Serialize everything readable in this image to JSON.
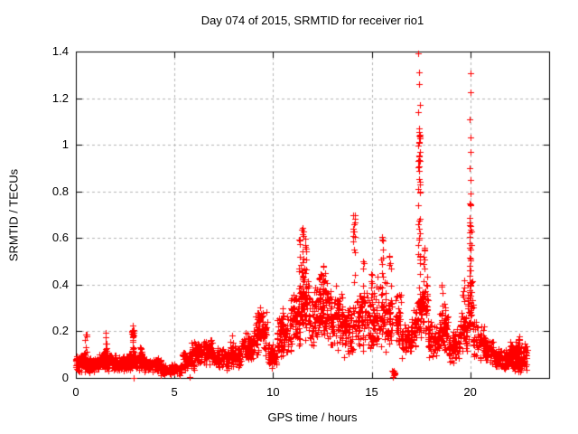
{
  "chart_data": {
    "type": "scatter",
    "title": "Day 074 of 2015, SRMTID for receiver rio1",
    "xlabel": "GPS time / hours",
    "ylabel": "SRMTID / TECUs",
    "xlim": [
      0,
      24
    ],
    "ylim": [
      0,
      1.4
    ],
    "xticks": [
      0,
      5,
      10,
      15,
      20
    ],
    "xtick_labels": [
      "0",
      "5",
      "10",
      "15",
      "20"
    ],
    "yticks": [
      0,
      0.2,
      0.4,
      0.6,
      0.8,
      1,
      1.2,
      1.4
    ],
    "ytick_labels": [
      "0",
      "0.2",
      "0.4",
      "0.6",
      "0.8",
      "1",
      "1.2",
      "1.4"
    ],
    "grid": true,
    "legend": "none",
    "marker": "plus",
    "marker_color": "#ff0000",
    "grid_color": "#b4b4b4",
    "frame_color": "#000000",
    "series_name": "SRMTID",
    "x_data_range": [
      0.05,
      22.9
    ],
    "band_segments": [
      [
        0.0,
        0.6,
        0.02,
        0.11,
        90
      ],
      [
        0.6,
        1.2,
        0.02,
        0.09,
        85
      ],
      [
        1.2,
        1.8,
        0.03,
        0.12,
        85
      ],
      [
        1.8,
        2.6,
        0.02,
        0.1,
        105
      ],
      [
        2.6,
        3.4,
        0.03,
        0.12,
        105
      ],
      [
        3.4,
        4.3,
        0.02,
        0.1,
        115
      ],
      [
        4.3,
        5.4,
        0.01,
        0.06,
        115
      ],
      [
        5.4,
        6.0,
        0.03,
        0.13,
        65
      ],
      [
        6.0,
        7.0,
        0.05,
        0.17,
        110
      ],
      [
        7.0,
        7.8,
        0.03,
        0.13,
        85
      ],
      [
        7.8,
        8.4,
        0.04,
        0.15,
        70
      ],
      [
        8.4,
        9.0,
        0.06,
        0.2,
        75
      ],
      [
        9.0,
        9.7,
        0.08,
        0.3,
        85
      ],
      [
        9.7,
        10.2,
        0.03,
        0.15,
        60
      ],
      [
        10.2,
        10.9,
        0.08,
        0.28,
        85
      ],
      [
        10.9,
        11.4,
        0.12,
        0.4,
        65
      ],
      [
        11.4,
        11.8,
        0.15,
        0.48,
        55
      ],
      [
        11.8,
        12.3,
        0.12,
        0.4,
        65
      ],
      [
        12.3,
        12.9,
        0.15,
        0.45,
        75
      ],
      [
        12.9,
        13.5,
        0.1,
        0.38,
        75
      ],
      [
        13.5,
        14.0,
        0.08,
        0.32,
        65
      ],
      [
        14.0,
        14.6,
        0.1,
        0.4,
        70
      ],
      [
        14.6,
        15.2,
        0.1,
        0.42,
        70
      ],
      [
        15.2,
        15.8,
        0.1,
        0.45,
        70
      ],
      [
        15.8,
        16.05,
        0.12,
        0.38,
        30
      ],
      [
        16.05,
        16.2,
        0.0,
        0.04,
        8
      ],
      [
        16.2,
        16.5,
        0.12,
        0.38,
        40
      ],
      [
        16.5,
        17.0,
        0.08,
        0.25,
        55
      ],
      [
        17.0,
        17.3,
        0.1,
        0.3,
        40
      ],
      [
        17.3,
        17.85,
        0.15,
        0.45,
        80
      ],
      [
        17.85,
        18.4,
        0.08,
        0.25,
        60
      ],
      [
        18.4,
        18.9,
        0.1,
        0.32,
        55
      ],
      [
        18.9,
        19.5,
        0.06,
        0.22,
        65
      ],
      [
        19.5,
        19.85,
        0.1,
        0.3,
        45
      ],
      [
        19.85,
        20.15,
        0.15,
        0.45,
        40
      ],
      [
        20.15,
        20.7,
        0.07,
        0.25,
        60
      ],
      [
        20.7,
        21.2,
        0.05,
        0.18,
        60
      ],
      [
        21.2,
        22.0,
        0.03,
        0.13,
        115
      ],
      [
        22.0,
        22.9,
        0.02,
        0.17,
        135
      ]
    ],
    "spike_columns": [
      [
        0.5,
        0.1,
        0.19,
        8
      ],
      [
        1.5,
        0.1,
        0.215,
        10
      ],
      [
        2.9,
        0.1,
        0.23,
        16
      ],
      [
        2.9,
        0.185,
        0.21,
        8
      ],
      [
        3.3,
        0.08,
        0.14,
        6
      ],
      [
        5.6,
        0.04,
        0.1,
        6
      ],
      [
        5.9,
        0.08,
        0.16,
        6
      ],
      [
        6.8,
        0.1,
        0.18,
        6
      ],
      [
        7.9,
        0.1,
        0.19,
        6
      ],
      [
        9.3,
        0.15,
        0.32,
        10
      ],
      [
        9.5,
        0.12,
        0.28,
        8
      ],
      [
        10.5,
        0.15,
        0.3,
        8
      ],
      [
        11.35,
        0.3,
        0.62,
        14
      ],
      [
        11.5,
        0.35,
        0.65,
        16
      ],
      [
        11.65,
        0.3,
        0.6,
        12
      ],
      [
        12.4,
        0.25,
        0.47,
        10
      ],
      [
        12.6,
        0.25,
        0.5,
        10
      ],
      [
        13.25,
        0.25,
        0.45,
        8
      ],
      [
        14.1,
        0.4,
        0.7,
        12
      ],
      [
        14.6,
        0.3,
        0.52,
        8
      ],
      [
        15.0,
        0.3,
        0.47,
        8
      ],
      [
        15.55,
        0.35,
        0.62,
        10
      ],
      [
        15.95,
        0.3,
        0.53,
        10
      ],
      [
        17.4,
        0.45,
        0.8,
        14
      ],
      [
        17.4,
        0.78,
        0.92,
        10
      ],
      [
        17.42,
        0.93,
        1.06,
        20
      ],
      [
        17.65,
        0.3,
        0.6,
        12
      ],
      [
        18.55,
        0.2,
        0.42,
        10
      ],
      [
        18.75,
        0.2,
        0.36,
        8
      ],
      [
        19.65,
        0.18,
        0.42,
        10
      ],
      [
        20.0,
        0.2,
        0.75,
        32
      ],
      [
        22.45,
        0.1,
        0.19,
        8
      ]
    ],
    "outlier_points": [
      [
        17.38,
        1.392
      ],
      [
        17.42,
        1.31
      ],
      [
        17.4,
        1.26
      ],
      [
        17.43,
        1.17
      ],
      [
        17.38,
        1.14
      ],
      [
        17.41,
        1.07
      ],
      [
        20.0,
        1.307
      ],
      [
        20.02,
        1.225
      ],
      [
        19.99,
        1.11
      ],
      [
        20.01,
        1.03
      ],
      [
        20.03,
        0.97
      ],
      [
        19.99,
        0.9
      ],
      [
        20.01,
        0.85
      ],
      [
        20.0,
        0.79
      ],
      [
        14.08,
        0.7
      ],
      [
        14.12,
        0.66
      ],
      [
        14.06,
        0.64
      ],
      [
        16.07,
        0.005
      ],
      [
        16.1,
        0.01
      ],
      [
        5.75,
        0.005
      ],
      [
        2.95,
        0.0
      ]
    ]
  }
}
